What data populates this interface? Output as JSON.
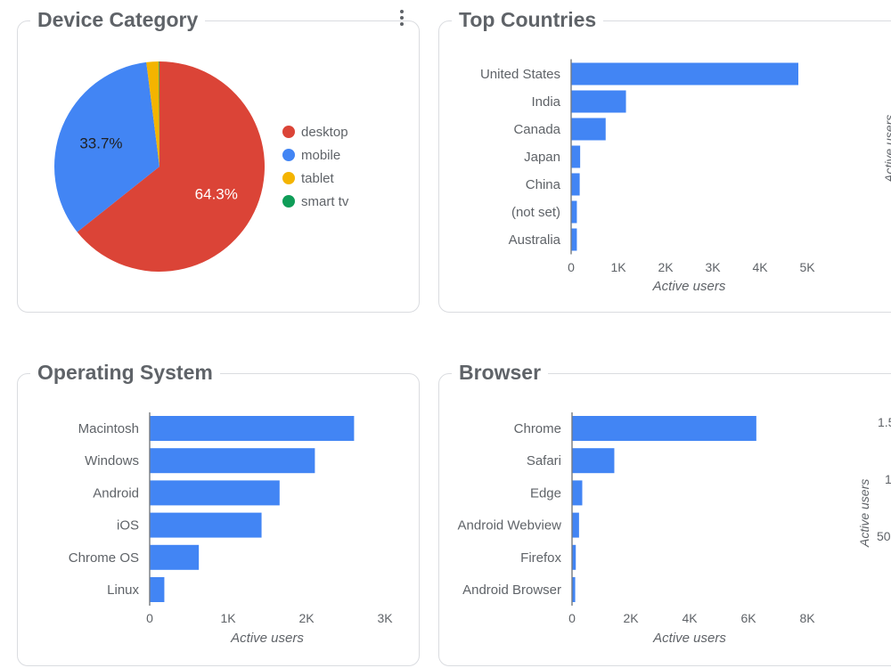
{
  "colors": {
    "bar": "#4285f4",
    "desktop": "#db4437",
    "mobile": "#4285f4",
    "tablet": "#f4b400",
    "smart_tv": "#0f9d58"
  },
  "cards": {
    "device": {
      "title": "Device Category"
    },
    "countries": {
      "title": "Top Countries"
    },
    "os": {
      "title": "Operating System"
    },
    "browser": {
      "title": "Browser"
    }
  },
  "menu_icon": "more-vert-icon",
  "edge_fragments": {
    "countries_axis_title": "Active users",
    "browser_axis_title": "Active users",
    "browser_tick_1": "1.5",
    "browser_tick_2": "1",
    "browser_tick_3": "50"
  },
  "chart_data": [
    {
      "type": "pie",
      "title": "Device Category",
      "categories": [
        "desktop",
        "mobile",
        "tablet",
        "smart tv"
      ],
      "values": [
        64.3,
        33.7,
        1.9,
        0.1
      ],
      "data_labels": [
        "64.3%",
        "33.7%",
        "",
        ""
      ],
      "legend": "right"
    },
    {
      "type": "bar",
      "orientation": "horizontal",
      "title": "Top Countries",
      "categories": [
        "United States",
        "India",
        "Canada",
        "Japan",
        "China",
        "(not set)",
        "Australia"
      ],
      "values": [
        4800,
        1150,
        720,
        180,
        170,
        110,
        110
      ],
      "xlabel": "Active users",
      "xlim": [
        0,
        5000
      ],
      "xticks": [
        "0",
        "1K",
        "2K",
        "3K",
        "4K",
        "5K"
      ]
    },
    {
      "type": "bar",
      "orientation": "horizontal",
      "title": "Operating System",
      "categories": [
        "Macintosh",
        "Windows",
        "Android",
        "iOS",
        "Chrome OS",
        "Linux"
      ],
      "values": [
        2600,
        2100,
        1650,
        1420,
        620,
        180
      ],
      "xlabel": "Active users",
      "xlim": [
        0,
        3000
      ],
      "xticks": [
        "0",
        "1K",
        "2K",
        "3K"
      ]
    },
    {
      "type": "bar",
      "orientation": "horizontal",
      "title": "Browser",
      "categories": [
        "Chrome",
        "Safari",
        "Edge",
        "Android Webview",
        "Firefox",
        "Android Browser"
      ],
      "values": [
        6250,
        1420,
        330,
        220,
        110,
        90
      ],
      "xlabel": "Active users",
      "xlim": [
        0,
        8000
      ],
      "xticks": [
        "0",
        "2K",
        "4K",
        "6K",
        "8K"
      ]
    }
  ]
}
